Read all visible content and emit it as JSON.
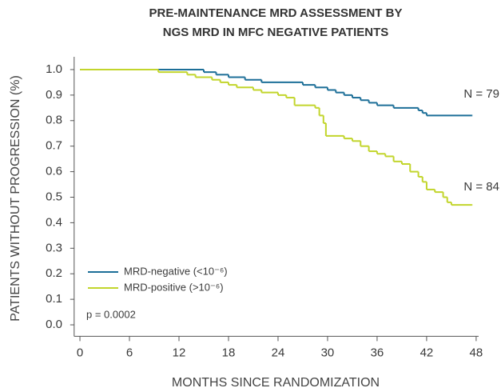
{
  "chart_data": {
    "type": "step",
    "title": [
      "PRE-MAINTENANCE MRD ASSESSMENT BY",
      "NGS MRD IN MFC NEGATIVE PATIENTS"
    ],
    "xlabel": "MONTHS SINCE RANDOMIZATION",
    "ylabel": "PATIENTS WITHOUT PROGRESSION (%)",
    "xlim": [
      -0.7,
      48.3
    ],
    "ylim": [
      -0.045,
      1.05
    ],
    "xticks": [
      0,
      6,
      12,
      18,
      24,
      30,
      36,
      42,
      48
    ],
    "yticks": [
      {
        "value": 1,
        "label": "1.0"
      },
      0.9,
      0.8,
      0.7,
      0.6,
      0.5,
      0.4,
      0.3,
      0.2,
      0.1,
      {
        "value": 0,
        "label": "0.0"
      }
    ],
    "series": [
      {
        "name": "MRD-negative (<10⁻⁶)",
        "color": "#1d6f98",
        "x": [
          0,
          15,
          16.5,
          18,
          20,
          22,
          27,
          28.5,
          30,
          31,
          32,
          33,
          34,
          35,
          36,
          38,
          41,
          41.5,
          42,
          47.5
        ],
        "values": [
          1,
          0.99,
          0.98,
          0.97,
          0.96,
          0.95,
          0.94,
          0.93,
          0.92,
          0.91,
          0.9,
          0.89,
          0.88,
          0.87,
          0.86,
          0.85,
          0.84,
          0.83,
          0.82,
          0.82
        ]
      },
      {
        "name": "MRD-positive (>10⁻⁶)",
        "color": "#c2d52c",
        "x": [
          0,
          9.5,
          13,
          14,
          16,
          17,
          18,
          19,
          21,
          22,
          24,
          25,
          26,
          28.5,
          29,
          29.5,
          29.8,
          32,
          33,
          34,
          35,
          36,
          37,
          38,
          39,
          40,
          41,
          41.5,
          42,
          43,
          44,
          44.5,
          45,
          47.5
        ],
        "values": [
          1,
          0.99,
          0.98,
          0.97,
          0.96,
          0.95,
          0.94,
          0.93,
          0.92,
          0.91,
          0.9,
          0.89,
          0.86,
          0.85,
          0.82,
          0.79,
          0.74,
          0.73,
          0.72,
          0.7,
          0.68,
          0.67,
          0.66,
          0.64,
          0.63,
          0.6,
          0.58,
          0.56,
          0.53,
          0.52,
          0.5,
          0.48,
          0.47,
          0.47
        ]
      }
    ],
    "annotations": [
      "N = 79",
      "N = 84",
      "p = 0.0002"
    ]
  }
}
